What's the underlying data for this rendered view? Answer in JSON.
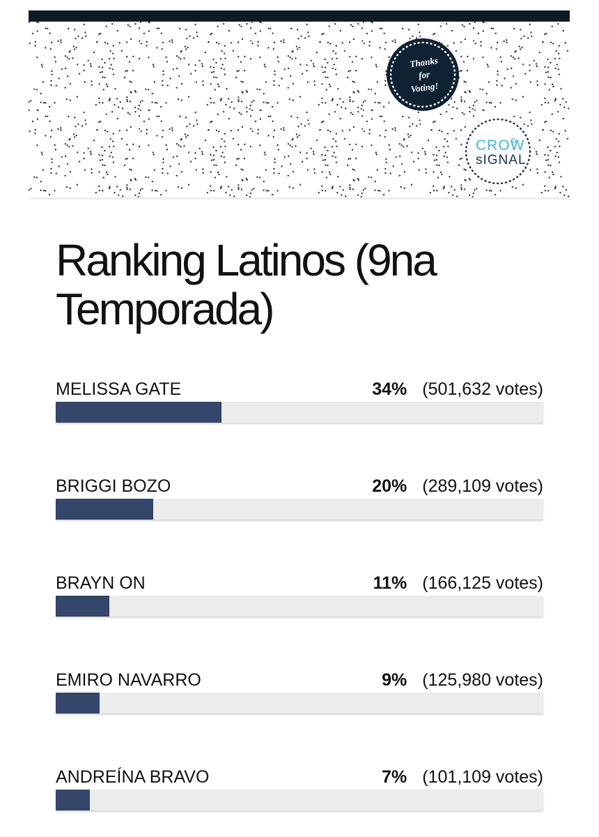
{
  "header": {
    "badge": [
      "Thanks",
      "for",
      "Voting!"
    ],
    "logo": [
      "CROW",
      "D",
      "sIGNAL"
    ]
  },
  "title": "Ranking Latinos (9na Temporada)",
  "results": [
    {
      "name": "MELISSA GATE",
      "percent": 34,
      "percent_label": "34%",
      "votes": "(501,632 votes)"
    },
    {
      "name": "BRIGGI BOZO",
      "percent": 20,
      "percent_label": "20%",
      "votes": "(289,109 votes)"
    },
    {
      "name": "BRAYN ON",
      "percent": 11,
      "percent_label": "11%",
      "votes": "(166,125 votes)"
    },
    {
      "name": "EMIRO NAVARRO",
      "percent": 9,
      "percent_label": "9%",
      "votes": "(125,980 votes)"
    },
    {
      "name": "ANDREÍNA BRAVO",
      "percent": 7,
      "percent_label": "7%",
      "votes": "(101,109 votes)"
    }
  ]
}
